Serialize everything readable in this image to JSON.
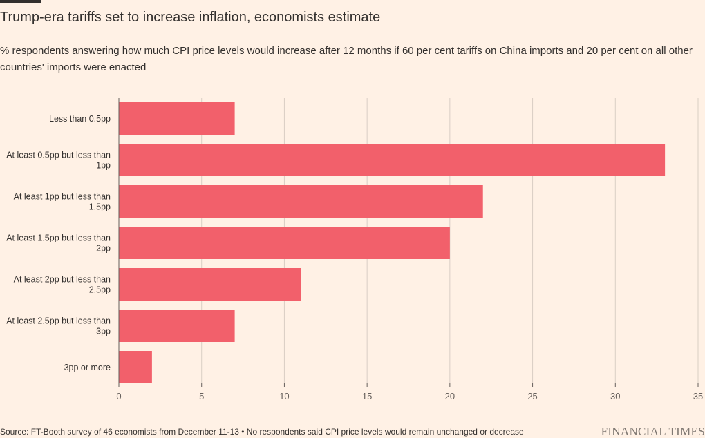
{
  "header": {
    "title": "Trump-era tariffs set to increase inflation, economists estimate",
    "subtitle": "% respondents answering how much CPI price levels would increase after 12 months if 60 per cent tariffs on China imports and 20 per cent on all other countries' imports were enacted"
  },
  "chart_data": {
    "type": "bar",
    "orientation": "horizontal",
    "categories": [
      "Less than 0.5pp",
      "At least 0.5pp but less than 1pp",
      "At least 1pp but less than 1.5pp",
      "At least 1.5pp but less than 2pp",
      "At least 2pp but less than 2.5pp",
      "At least 2.5pp but less than 3pp",
      "3pp or more"
    ],
    "category_lines": [
      [
        "Less than 0.5pp"
      ],
      [
        "At least 0.5pp but less than",
        "1pp"
      ],
      [
        "At least 1pp but less than",
        "1.5pp"
      ],
      [
        "At least 1.5pp but less than",
        "2pp"
      ],
      [
        "At least 2pp but less than",
        "2.5pp"
      ],
      [
        "At least 2.5pp but less than",
        "3pp"
      ],
      [
        "3pp or more"
      ]
    ],
    "values": [
      7,
      33,
      22,
      20,
      11,
      7,
      2
    ],
    "xlim": [
      0,
      35
    ],
    "xticks": [
      0,
      5,
      10,
      15,
      20,
      25,
      30,
      35
    ],
    "grid": true,
    "bar_color": "#F2606B",
    "grid_color": "#D9CEC4",
    "axis_color": "#66605C"
  },
  "footer": {
    "source": "Source: FT-Booth survey of 46 economists from December 11-13 • No respondents said CPI price levels would remain unchanged or decrease",
    "brand": "FINANCIAL TIMES"
  }
}
